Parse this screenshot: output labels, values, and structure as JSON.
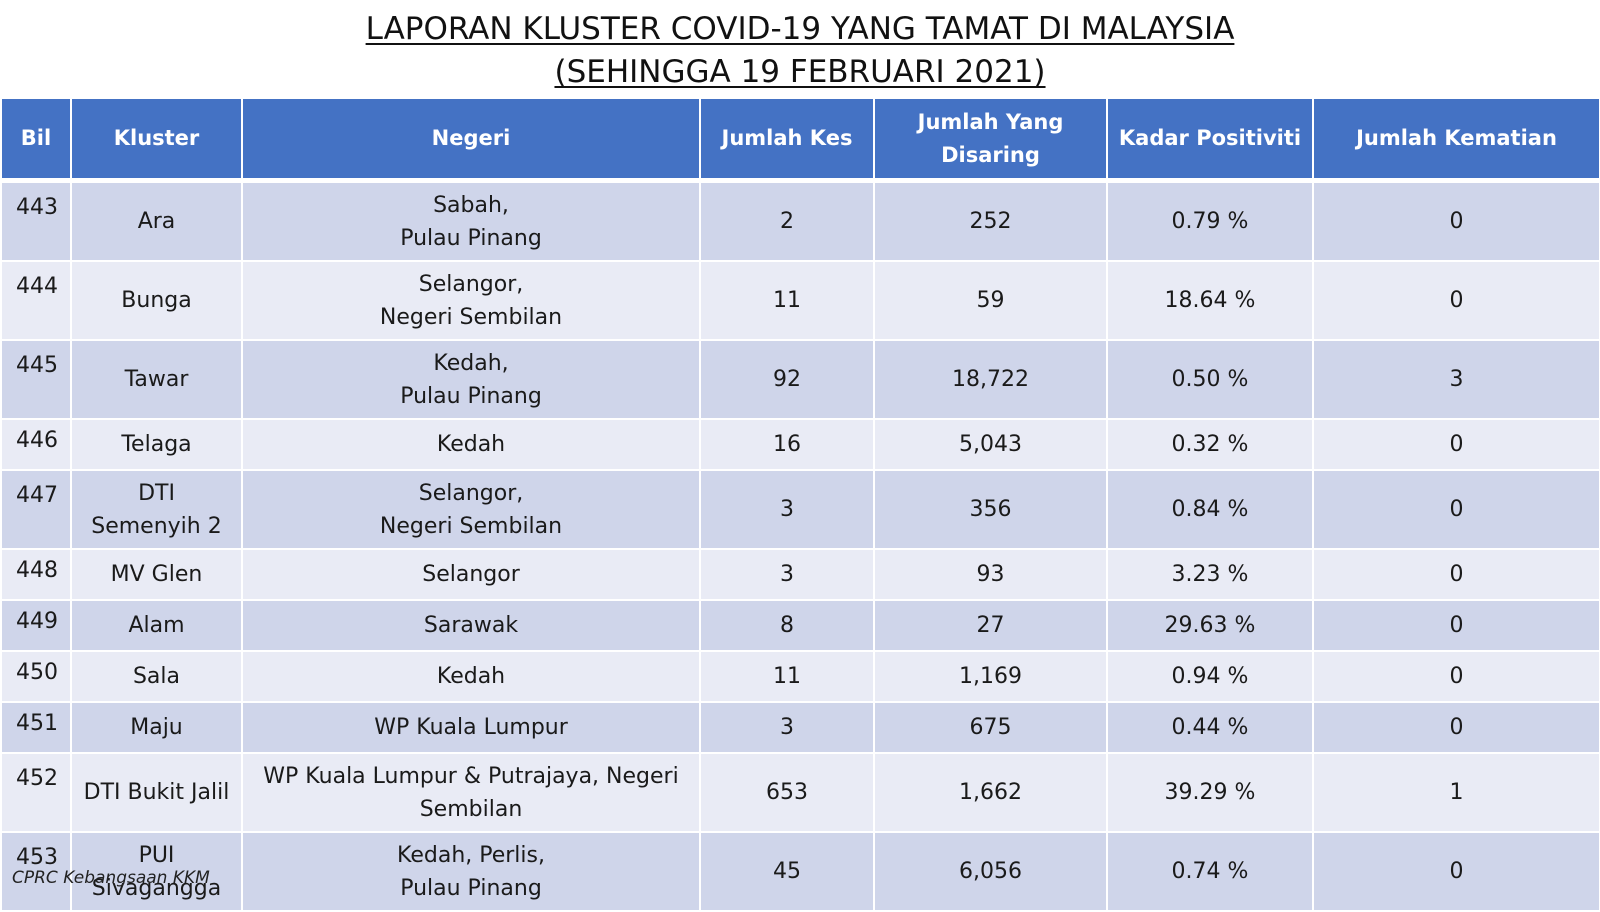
{
  "title": {
    "line1": "LAPORAN KLUSTER COVID-19 YANG TAMAT DI MALAYSIA",
    "line2": "(SEHINGGA 19 FEBRUARI 2021)"
  },
  "table": {
    "headers": {
      "bil": "Bil",
      "kluster": "Kluster",
      "negeri": "Negeri",
      "jumlah_kes": "Jumlah Kes",
      "jumlah_disaring": "Jumlah Yang Disaring",
      "kadar_positiviti": "Kadar Positiviti",
      "jumlah_kematian": "Jumlah Kematian"
    },
    "rows": [
      {
        "bil": "443",
        "kluster": "Ara",
        "negeri": "Sabah,\nPulau Pinang",
        "kes": "2",
        "disaring": "252",
        "positiviti": "0.79 %",
        "kematian": "0"
      },
      {
        "bil": "444",
        "kluster": "Bunga",
        "negeri": "Selangor,\nNegeri Sembilan",
        "kes": "11",
        "disaring": "59",
        "positiviti": "18.64 %",
        "kematian": "0"
      },
      {
        "bil": "445",
        "kluster": "Tawar",
        "negeri": "Kedah,\nPulau Pinang",
        "kes": "92",
        "disaring": "18,722",
        "positiviti": "0.50 %",
        "kematian": "3"
      },
      {
        "bil": "446",
        "kluster": "Telaga",
        "negeri": "Kedah",
        "kes": "16",
        "disaring": "5,043",
        "positiviti": "0.32 %",
        "kematian": "0"
      },
      {
        "bil": "447",
        "kluster": "DTI\nSemenyih 2",
        "negeri": "Selangor,\nNegeri Sembilan",
        "kes": "3",
        "disaring": "356",
        "positiviti": "0.84 %",
        "kematian": "0"
      },
      {
        "bil": "448",
        "kluster": "MV Glen",
        "negeri": "Selangor",
        "kes": "3",
        "disaring": "93",
        "positiviti": "3.23 %",
        "kematian": "0"
      },
      {
        "bil": "449",
        "kluster": "Alam",
        "negeri": "Sarawak",
        "kes": "8",
        "disaring": "27",
        "positiviti": "29.63 %",
        "kematian": "0"
      },
      {
        "bil": "450",
        "kluster": "Sala",
        "negeri": "Kedah",
        "kes": "11",
        "disaring": "1,169",
        "positiviti": "0.94 %",
        "kematian": "0"
      },
      {
        "bil": "451",
        "kluster": "Maju",
        "negeri": "WP Kuala Lumpur",
        "kes": "3",
        "disaring": "675",
        "positiviti": "0.44 %",
        "kematian": "0"
      },
      {
        "bil": "452",
        "kluster": "DTI Bukit Jalil",
        "negeri": "WP Kuala Lumpur & Putrajaya, Negeri\nSembilan",
        "kes": "653",
        "disaring": "1,662",
        "positiviti": "39.29 %",
        "kematian": "1"
      },
      {
        "bil": "453",
        "kluster": "PUI\nSivagangga",
        "negeri": "Kedah, Perlis,\nPulau Pinang",
        "kes": "45",
        "disaring": "6,056",
        "positiviti": "0.74 %",
        "kematian": "0"
      }
    ]
  },
  "footer": {
    "source": "CPRC Kebangsaan KKM"
  },
  "colors": {
    "header_bg": "#4472c4",
    "row_dark": "#cfd5ea",
    "row_light": "#e9ebf5"
  }
}
